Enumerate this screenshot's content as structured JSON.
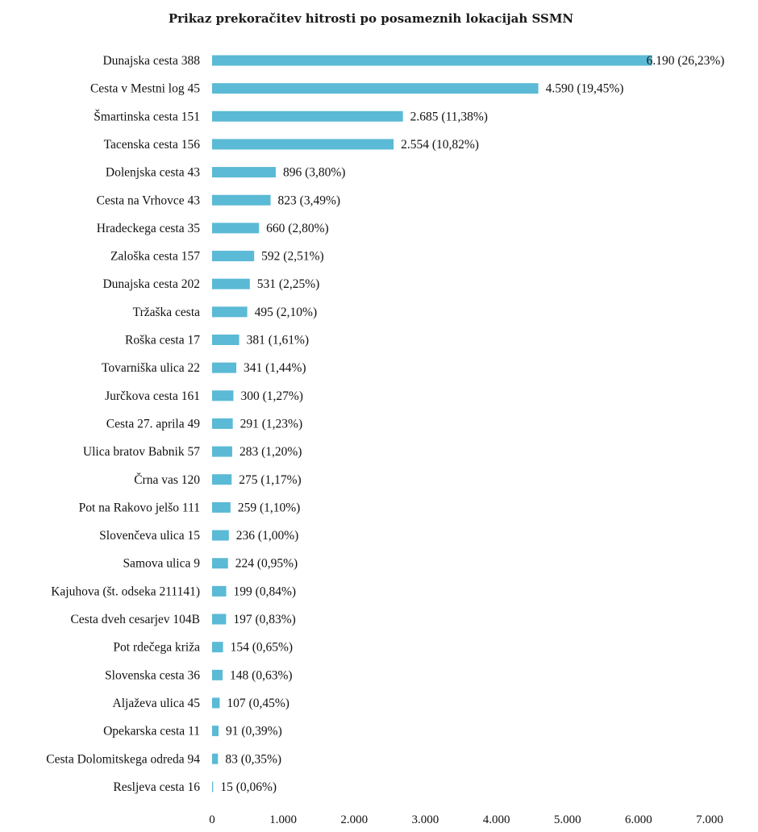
{
  "chart_data": {
    "type": "bar",
    "orientation": "horizontal",
    "title": "Prikaz prekoračitev hitrosti po posameznih lokacijah SSMN",
    "xlabel": "",
    "ylabel": "",
    "xlim": [
      0,
      7000
    ],
    "grid": false,
    "legend": "none",
    "bar_color": "#5bbad5",
    "categories": [
      "Dunajska cesta 388",
      "Cesta v Mestni log 45",
      "Šmartinska cesta 151",
      "Tacenska cesta 156",
      "Dolenjska cesta 43",
      "Cesta na Vrhovce 43",
      "Hradeckega cesta 35",
      "Zaloška cesta 157",
      "Dunajska cesta 202",
      "Tržaška cesta",
      "Roška cesta 17",
      "Tovarniška ulica 22",
      "Jurčkova cesta 161",
      "Cesta 27. aprila 49",
      "Ulica bratov Babnik 57",
      "Črna vas 120",
      "Pot na Rakovo jelšo 111",
      "Slovenčeva ulica 15",
      "Samova ulica 9",
      "Kajuhova (št. odseka 211141)",
      "Cesta dveh cesarjev 104B",
      "Pot rdečega križa",
      "Slovenska cesta 36",
      "Aljaževa ulica 45",
      "Opekarska cesta 11",
      "Cesta Dolomitskega odreda 94",
      "Resljeva cesta 16"
    ],
    "values": [
      6190,
      4590,
      2685,
      2554,
      896,
      823,
      660,
      592,
      531,
      495,
      381,
      341,
      300,
      291,
      283,
      275,
      259,
      236,
      224,
      199,
      197,
      154,
      148,
      107,
      91,
      83,
      15
    ],
    "data_labels": [
      "6.190 (26,23%)",
      "4.590 (19,45%)",
      "2.685 (11,38%)",
      "2.554 (10,82%)",
      "896 (3,80%)",
      "823 (3,49%)",
      "660 (2,80%)",
      "592 (2,51%)",
      "531 (2,25%)",
      "495 (2,10%)",
      "381 (1,61%)",
      "341 (1,44%)",
      "300 (1,27%)",
      "291 (1,23%)",
      "283 (1,20%)",
      "275 (1,17%)",
      "259 (1,10%)",
      "236 (1,00%)",
      "224 (0,95%)",
      "199 (0,84%)",
      "197 (0,83%)",
      "154 (0,65%)",
      "148 (0,63%)",
      "107 (0,45%)",
      "91 (0,39%)",
      "83 (0,35%)",
      "15 (0,06%)"
    ],
    "x_ticks": [
      0,
      1000,
      2000,
      3000,
      4000,
      5000,
      6000,
      7000
    ],
    "x_tick_labels": [
      "0",
      "1.000",
      "2.000",
      "3.000",
      "4.000",
      "5.000",
      "6.000",
      "7.000"
    ]
  }
}
